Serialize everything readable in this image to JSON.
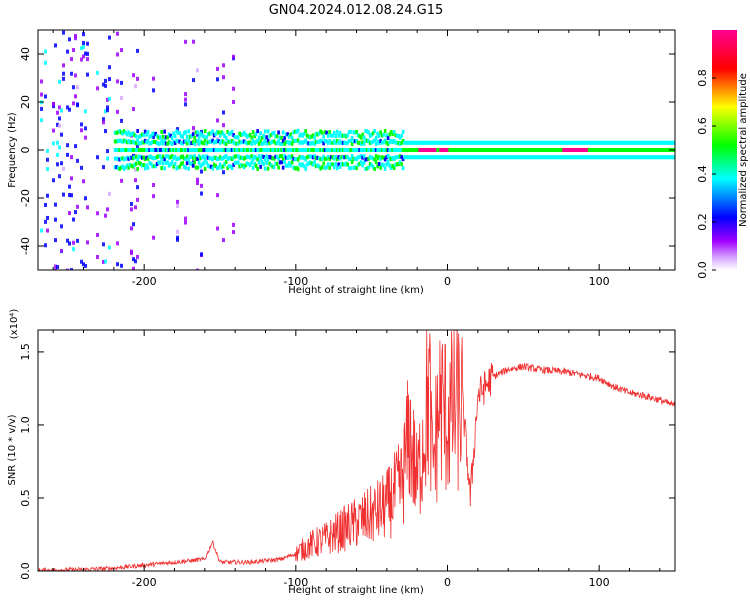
{
  "title": "GN04.2024.012.08.24.G15",
  "chart_data": [
    {
      "type": "heatmap",
      "title": "GN04.2024.012.08.24.G15",
      "xlabel": "Height of straight line (km)",
      "ylabel": "Frequency (Hz)",
      "xlim": [
        -270,
        150
      ],
      "ylim": [
        -50,
        50
      ],
      "xticks": [
        -200,
        -100,
        0,
        100
      ],
      "xtick_labels": [
        "-200",
        "-100",
        "0",
        "100"
      ],
      "yticks": [
        -40,
        -20,
        0,
        20,
        40
      ],
      "ytick_labels": [
        "-40",
        "-20",
        "0",
        "20",
        "40"
      ],
      "colorbar": {
        "label": "Normalized spectral amplitude",
        "range": [
          0,
          1
        ],
        "ticks": [
          0.0,
          0.2,
          0.4,
          0.6,
          0.8
        ],
        "tick_labels": [
          "0.0",
          "0.2",
          "0.4",
          "0.6",
          "0.8"
        ],
        "colors": [
          "#ffffff",
          "#a000ff",
          "#0000ff",
          "#00ffff",
          "#00ff00",
          "#ffff00",
          "#ff0000",
          "#ff00a0"
        ]
      },
      "band": {
        "center_freq_hz": 0,
        "noisy_region_x": [
          -270,
          -130
        ],
        "band_start_x": -220,
        "smooth_from_x": -30,
        "strong_segments_x": [
          [
            -20,
            -8
          ],
          [
            -6,
            0
          ],
          [
            75,
            92
          ]
        ]
      }
    },
    {
      "type": "line",
      "xlabel": "Height of straight line (km)",
      "ylabel": "SNR (10 * v/v)",
      "y_multiplier": "(x10⁴)",
      "xlim": [
        -270,
        150
      ],
      "ylim": [
        0,
        1.65
      ],
      "xticks": [
        -200,
        -100,
        0,
        100
      ],
      "xtick_labels": [
        "-200",
        "-100",
        "0",
        "100"
      ],
      "yticks": [
        0.0,
        0.5,
        1.0,
        1.5
      ],
      "ytick_labels": [
        "0.0",
        "0.5",
        "1.0",
        "1.5"
      ],
      "color": "#f03030",
      "series": [
        {
          "x": [
            -270,
            -240,
            -220,
            -200,
            -180,
            -160,
            -155,
            -150,
            -130,
            -110,
            -100,
            -90,
            -80,
            -70,
            -60,
            -50,
            -40,
            -30,
            -25,
            -20,
            -15,
            -12,
            -10,
            -5,
            0,
            5,
            10,
            15,
            20,
            30,
            40,
            50,
            60,
            70,
            80,
            90,
            100,
            110,
            120,
            130,
            140,
            150
          ],
          "y": [
            0.005,
            0.01,
            0.02,
            0.04,
            0.06,
            0.08,
            0.2,
            0.06,
            0.06,
            0.08,
            0.12,
            0.18,
            0.22,
            0.28,
            0.33,
            0.38,
            0.45,
            0.6,
            0.95,
            0.6,
            1.0,
            1.25,
            0.7,
            1.15,
            1.05,
            1.1,
            1.15,
            0.5,
            1.2,
            1.33,
            1.38,
            1.4,
            1.38,
            1.37,
            1.36,
            1.34,
            1.32,
            1.26,
            1.22,
            1.2,
            1.17,
            1.13
          ]
        }
      ]
    }
  ]
}
